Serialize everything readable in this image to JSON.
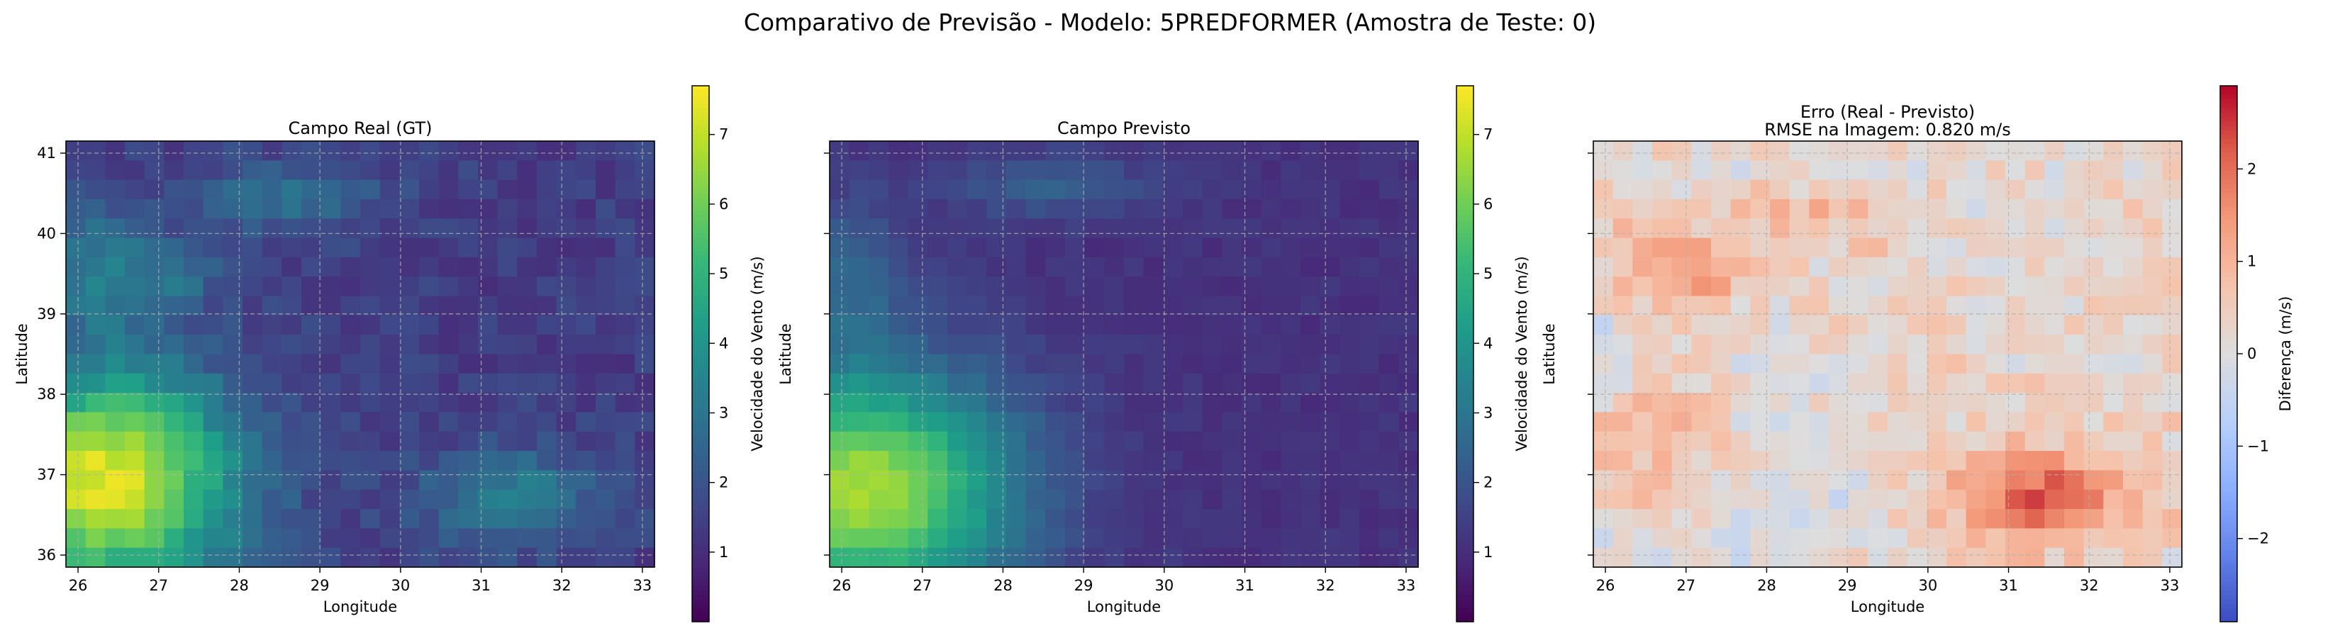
{
  "figure": {
    "suptitle": "Comparativo de Previsão - Modelo: 5PREDFORMER (Amostra de Teste: 0)"
  },
  "chart_data": [
    {
      "type": "heatmap",
      "title": "Campo Real (GT)",
      "xlabel": "Longitude",
      "ylabel": "Latitude",
      "xlim": [
        25.85,
        33.15
      ],
      "ylim": [
        35.85,
        41.15
      ],
      "xticks": [
        "26",
        "27",
        "28",
        "29",
        "30",
        "31",
        "32",
        "33"
      ],
      "yticks": [
        "36",
        "37",
        "38",
        "39",
        "40",
        "41"
      ],
      "grid": true,
      "colormap": "viridis",
      "colorbar": {
        "label": "Velocidade do Vento (m/s)",
        "range": [
          0.0,
          7.7
        ],
        "ticks": [
          "1",
          "2",
          "3",
          "4",
          "5",
          "6",
          "7"
        ]
      },
      "field": "real"
    },
    {
      "type": "heatmap",
      "title": "Campo Previsto",
      "xlabel": "Longitude",
      "ylabel": "Latitude",
      "xlim": [
        25.85,
        33.15
      ],
      "ylim": [
        35.85,
        41.15
      ],
      "xticks": [
        "26",
        "27",
        "28",
        "29",
        "30",
        "31",
        "32",
        "33"
      ],
      "yticks": [],
      "grid": true,
      "colormap": "viridis",
      "colorbar": {
        "label": "Velocidade do Vento (m/s)",
        "range": [
          0.0,
          7.7
        ],
        "ticks": [
          "1",
          "2",
          "3",
          "4",
          "5",
          "6",
          "7"
        ]
      },
      "field": "pred"
    },
    {
      "type": "heatmap",
      "title": "Erro (Real - Previsto)",
      "subtitle": "RMSE na Imagem: 0.820 m/s",
      "xlabel": "Longitude",
      "ylabel": "Latitude",
      "xlim": [
        25.85,
        33.15
      ],
      "ylim": [
        35.85,
        41.15
      ],
      "xticks": [
        "26",
        "27",
        "28",
        "29",
        "30",
        "31",
        "32",
        "33"
      ],
      "yticks": [],
      "grid": true,
      "colormap": "coolwarm",
      "colorbar": {
        "label": "Diferença (m/s)",
        "range": [
          -2.9,
          2.9
        ],
        "ticks": [
          "−2",
          "−1",
          "0",
          "1",
          "2"
        ]
      },
      "field": "error"
    }
  ]
}
